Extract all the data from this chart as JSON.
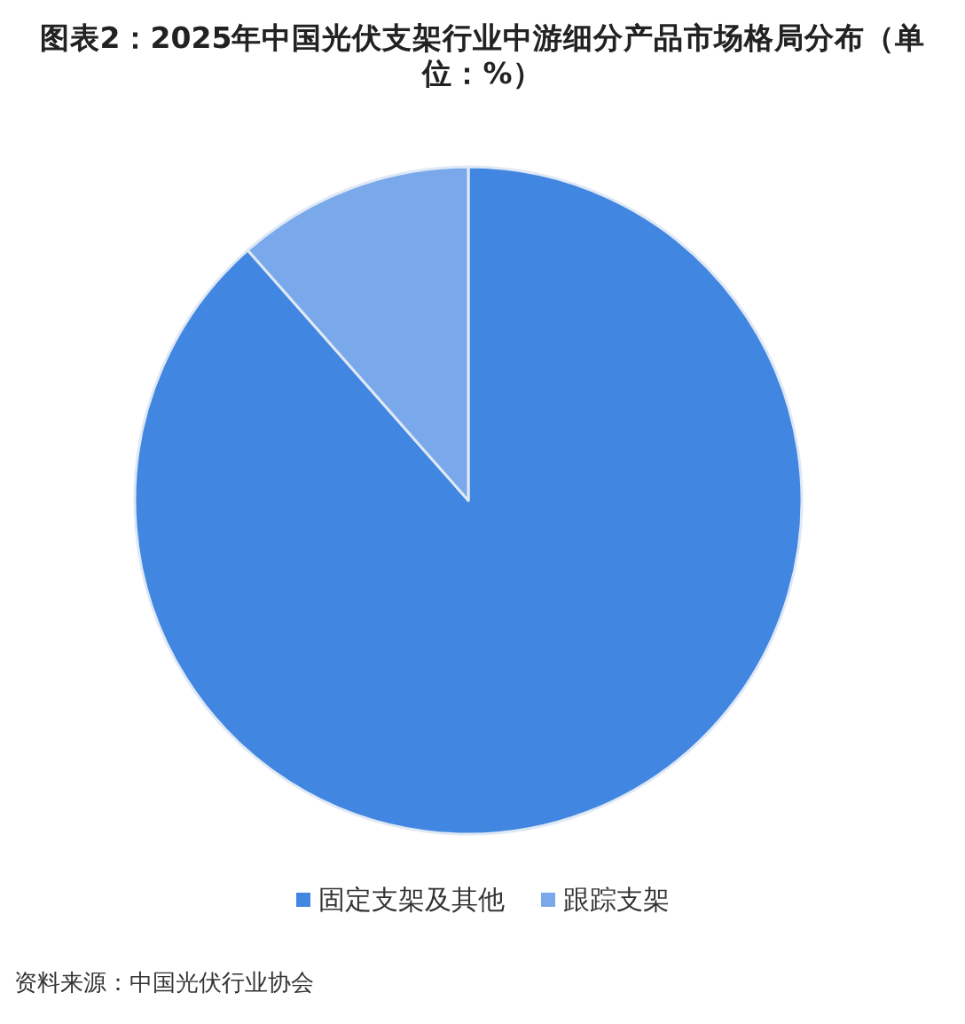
{
  "chart_data": {
    "type": "pie",
    "title": "图表2：2025年中国光伏支架行业中游细分产品市场格局分布（单位：%）",
    "categories": [
      "固定支架及其他",
      "跟踪支架"
    ],
    "values": [
      88.5,
      11.5
    ],
    "colors": [
      "#4186e0",
      "#79a9eb"
    ],
    "legend": "bottom",
    "annotations": [
      "资料来源：中国光伏行业协会"
    ]
  }
}
